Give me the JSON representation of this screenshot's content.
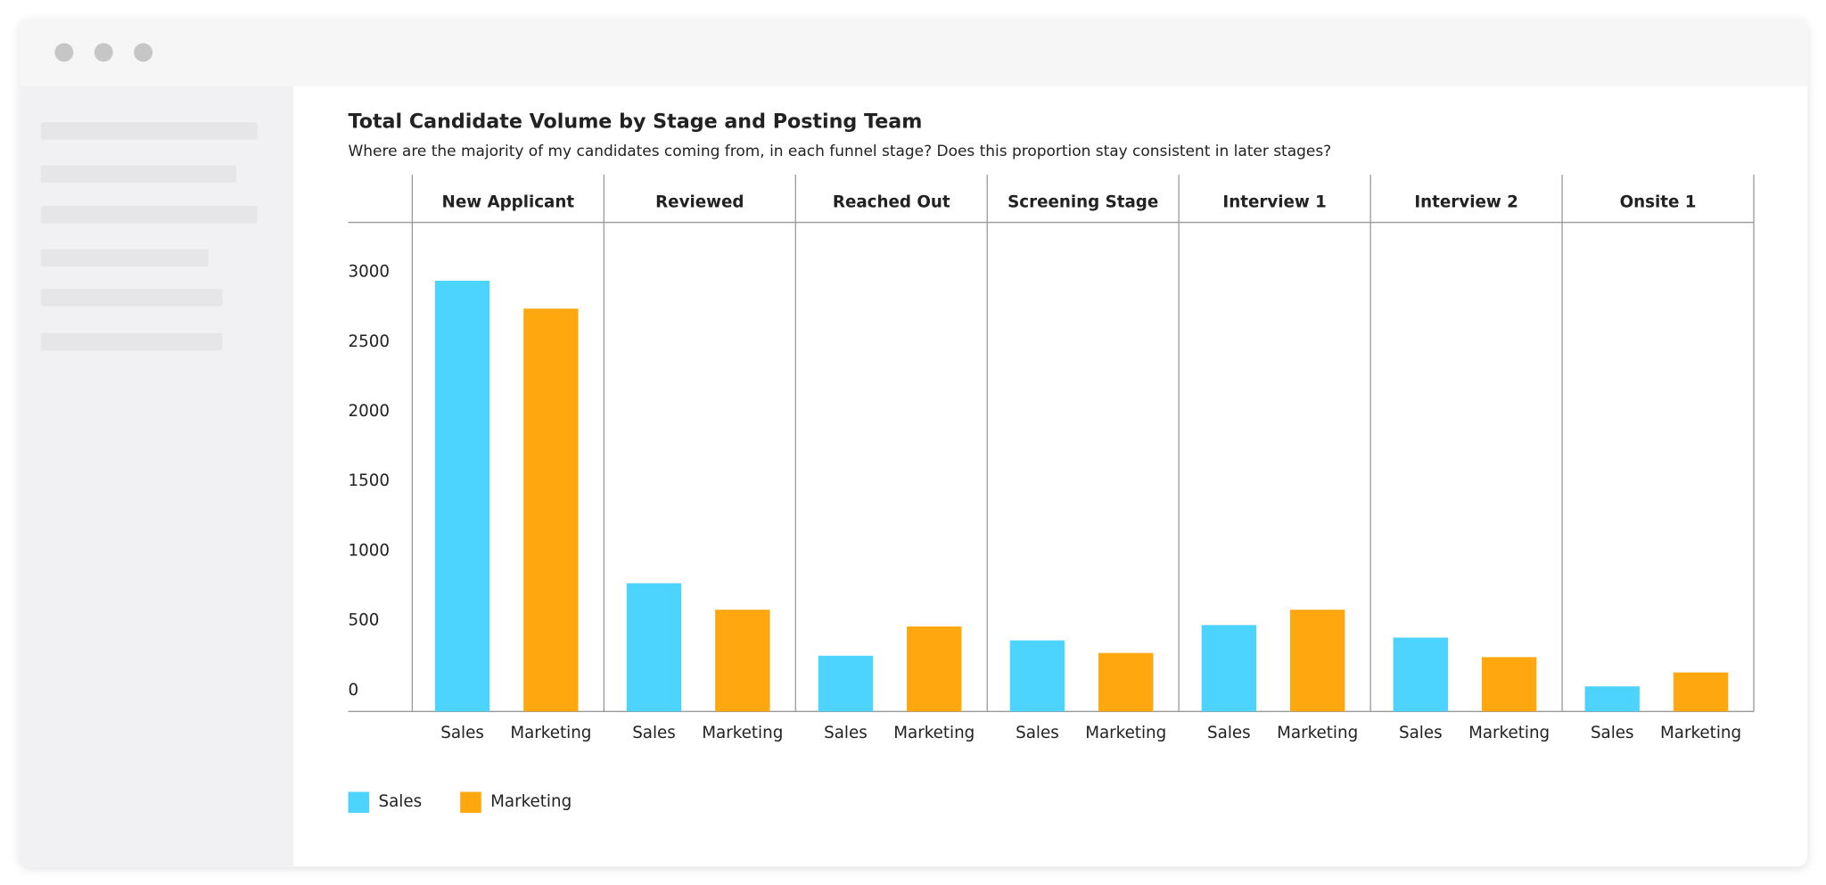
{
  "chart_data": {
    "type": "bar",
    "title": "Total Candidate Volume by Stage and Posting Team",
    "subtitle": "Where are the majority of my candidates coming from, in each funnel stage? Does this proportion stay consistent in later stages?",
    "categories": [
      "New Applicant",
      "Reviewed",
      "Reached Out",
      "Screening Stage",
      "Interview 1",
      "Interview 2",
      "Onsite 1"
    ],
    "series": [
      {
        "name": "Sales",
        "color": "#4dd4fe",
        "values": [
          3090,
          920,
          400,
          510,
          620,
          530,
          180
        ]
      },
      {
        "name": "Marketing",
        "color": "#ffa70f",
        "values": [
          2890,
          730,
          610,
          420,
          730,
          390,
          280
        ]
      }
    ],
    "ylim": [
      0,
      3500
    ],
    "yticks": [
      0,
      500,
      1000,
      1500,
      2000,
      2500,
      3000
    ],
    "grid": false,
    "legend": "bottom-left"
  }
}
